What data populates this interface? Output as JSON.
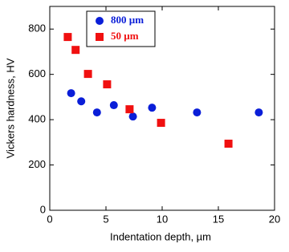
{
  "chart_data": {
    "type": "scatter",
    "xlabel": "Indentation depth,  µm",
    "ylabel": "Vickers hardness, HV",
    "xlim": [
      0,
      20
    ],
    "ylim": [
      0,
      900
    ],
    "xticks": [
      0,
      5,
      10,
      15,
      20
    ],
    "yticks": [
      0,
      200,
      400,
      600,
      800
    ],
    "legend": "upper left",
    "series": [
      {
        "name": "800 µm",
        "color": "#0a1ed8",
        "marker": "circle",
        "x": [
          1.9,
          2.8,
          4.2,
          5.7,
          7.4,
          9.1,
          13.1,
          18.6
        ],
        "values": [
          517,
          481,
          432,
          464,
          414,
          453,
          432,
          432
        ]
      },
      {
        "name": "50 µm",
        "color": "#f01010",
        "marker": "square",
        "x": [
          1.6,
          2.3,
          3.4,
          5.1,
          7.1,
          9.9,
          15.9
        ],
        "values": [
          765,
          708,
          602,
          556,
          446,
          386,
          294
        ]
      }
    ]
  }
}
